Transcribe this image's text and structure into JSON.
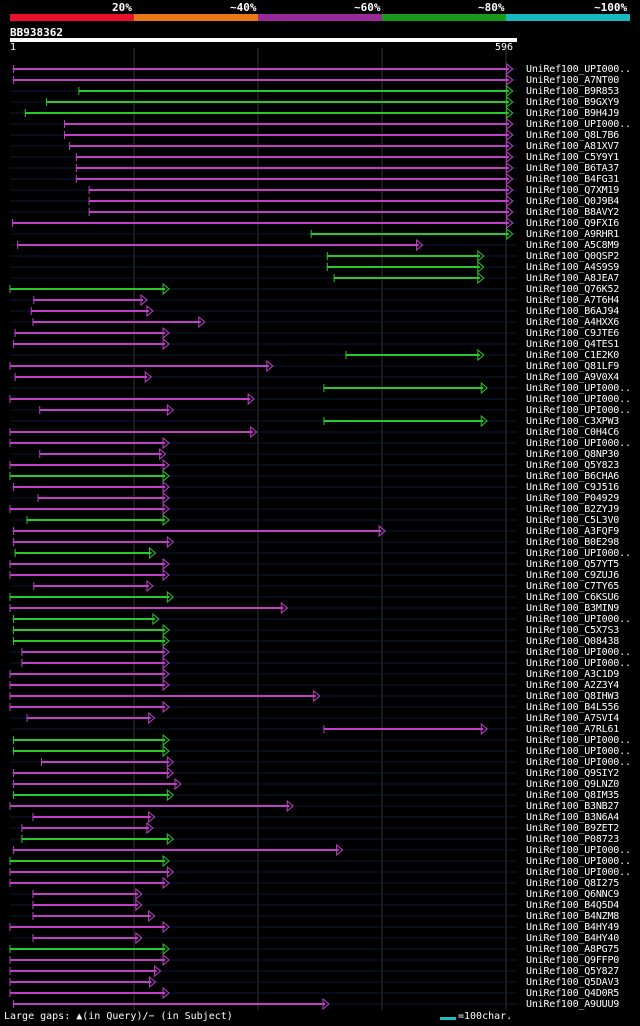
{
  "legend": {
    "labels": [
      "20%",
      "~40%",
      "~60%",
      "~80%",
      "~100%"
    ],
    "colors": [
      "#e8102a",
      "#e87818",
      "#9a2a9a",
      "#1a9a1a",
      "#18b8c0"
    ]
  },
  "query": {
    "id": "BB938362",
    "start": "1",
    "end": "596",
    "length": 596
  },
  "footer": {
    "gaps_text": "Large gaps: ▲(in Query)/− (in Subject)",
    "scale_text": "=100char."
  },
  "hit_colors": {
    "magenta": "#c040c8",
    "green": "#28c828"
  },
  "hits": [
    {
      "label": "UniRef100_UPI000..",
      "start": 4,
      "end": 591,
      "color": "magenta"
    },
    {
      "label": "UniRef100_A7NT00",
      "start": 4,
      "end": 591,
      "color": "magenta"
    },
    {
      "label": "UniRef100_B9R853",
      "start": 81,
      "end": 591,
      "color": "green"
    },
    {
      "label": "UniRef100_B9GXY9",
      "start": 43,
      "end": 591,
      "color": "green"
    },
    {
      "label": "UniRef100_B9H4J9",
      "start": 18,
      "end": 591,
      "color": "green"
    },
    {
      "label": "UniRef100_UPI000..",
      "start": 64,
      "end": 591,
      "color": "magenta"
    },
    {
      "label": "UniRef100_Q8L7B6",
      "start": 64,
      "end": 591,
      "color": "magenta"
    },
    {
      "label": "UniRef100_A81XV7",
      "start": 70,
      "end": 591,
      "color": "magenta"
    },
    {
      "label": "UniRef100_C5Y9Y1",
      "start": 78,
      "end": 591,
      "color": "magenta"
    },
    {
      "label": "UniRef100_B6TA37",
      "start": 78,
      "end": 591,
      "color": "magenta"
    },
    {
      "label": "UniRef100_B4FG31",
      "start": 78,
      "end": 591,
      "color": "magenta"
    },
    {
      "label": "UniRef100_Q7XM19",
      "start": 93,
      "end": 591,
      "color": "magenta"
    },
    {
      "label": "UniRef100_Q0J9B4",
      "start": 93,
      "end": 591,
      "color": "magenta"
    },
    {
      "label": "UniRef100_B8AVY2",
      "start": 93,
      "end": 591,
      "color": "magenta"
    },
    {
      "label": "UniRef100_Q9FXI6",
      "start": 3,
      "end": 591,
      "color": "magenta"
    },
    {
      "label": "UniRef100_A9RHR1",
      "start": 354,
      "end": 591,
      "color": "green"
    },
    {
      "label": "UniRef100_A5C8M9",
      "start": 9,
      "end": 485,
      "color": "magenta"
    },
    {
      "label": "UniRef100_Q0QSP2",
      "start": 373,
      "end": 557,
      "color": "green"
    },
    {
      "label": "UniRef100_A4S9S9",
      "start": 373,
      "end": 557,
      "color": "green"
    },
    {
      "label": "UniRef100_A8JEA7",
      "start": 381,
      "end": 557,
      "color": "green"
    },
    {
      "label": "UniRef100_Q76K52",
      "start": 0,
      "end": 187,
      "color": "green"
    },
    {
      "label": "UniRef100_A7T6H4",
      "start": 28,
      "end": 161,
      "color": "magenta"
    },
    {
      "label": "UniRef100_B6AJ94",
      "start": 25,
      "end": 168,
      "color": "magenta"
    },
    {
      "label": "UniRef100_A4HXX6",
      "start": 27,
      "end": 229,
      "color": "magenta"
    },
    {
      "label": "UniRef100_C9JTE6",
      "start": 6,
      "end": 187,
      "color": "magenta"
    },
    {
      "label": "UniRef100_Q4TES1",
      "start": 4,
      "end": 187,
      "color": "magenta"
    },
    {
      "label": "UniRef100_C1E2K0",
      "start": 395,
      "end": 557,
      "color": "green"
    },
    {
      "label": "UniRef100_Q81LF9",
      "start": 0,
      "end": 309,
      "color": "magenta"
    },
    {
      "label": "UniRef100_A9V0X4",
      "start": 6,
      "end": 166,
      "color": "magenta"
    },
    {
      "label": "UniRef100_UPI000..",
      "start": 369,
      "end": 561,
      "color": "green"
    },
    {
      "label": "UniRef100_UPI000..",
      "start": 0,
      "end": 287,
      "color": "magenta"
    },
    {
      "label": "UniRef100_UPI000..",
      "start": 35,
      "end": 192,
      "color": "magenta"
    },
    {
      "label": "UniRef100_C3XPW3",
      "start": 369,
      "end": 561,
      "color": "green"
    },
    {
      "label": "UniRef100_C0H4C6",
      "start": 0,
      "end": 290,
      "color": "magenta"
    },
    {
      "label": "UniRef100_UPI000..",
      "start": 0,
      "end": 187,
      "color": "magenta"
    },
    {
      "label": "UniRef100_Q8NP30",
      "start": 35,
      "end": 183,
      "color": "magenta"
    },
    {
      "label": "UniRef100_Q5Y823",
      "start": 0,
      "end": 187,
      "color": "magenta"
    },
    {
      "label": "UniRef100_B6CHA6",
      "start": 0,
      "end": 187,
      "color": "green"
    },
    {
      "label": "UniRef100_C9J516",
      "start": 4,
      "end": 187,
      "color": "magenta"
    },
    {
      "label": "UniRef100_P04929",
      "start": 33,
      "end": 187,
      "color": "magenta"
    },
    {
      "label": "UniRef100_B2ZYJ9",
      "start": 0,
      "end": 187,
      "color": "magenta"
    },
    {
      "label": "UniRef100_C5L3V0",
      "start": 20,
      "end": 187,
      "color": "green"
    },
    {
      "label": "UniRef100_A3FQF9",
      "start": 4,
      "end": 441,
      "color": "magenta"
    },
    {
      "label": "UniRef100_B0E298",
      "start": 4,
      "end": 192,
      "color": "magenta"
    },
    {
      "label": "UniRef100_UPI000..",
      "start": 6,
      "end": 171,
      "color": "green"
    },
    {
      "label": "UniRef100_Q57YT5",
      "start": 0,
      "end": 187,
      "color": "magenta"
    },
    {
      "label": "UniRef100_C9ZUJ6",
      "start": 0,
      "end": 187,
      "color": "magenta"
    },
    {
      "label": "UniRef100_C7TY65",
      "start": 28,
      "end": 168,
      "color": "magenta"
    },
    {
      "label": "UniRef100_C6KSU6",
      "start": 0,
      "end": 192,
      "color": "green"
    },
    {
      "label": "UniRef100_B3MIN9",
      "start": 0,
      "end": 326,
      "color": "magenta"
    },
    {
      "label": "UniRef100_UPI000..",
      "start": 4,
      "end": 175,
      "color": "green"
    },
    {
      "label": "UniRef100_C5X7S3",
      "start": 4,
      "end": 187,
      "color": "green"
    },
    {
      "label": "UniRef100_Q08438",
      "start": 4,
      "end": 187,
      "color": "green"
    },
    {
      "label": "UniRef100_UPI000..",
      "start": 14,
      "end": 187,
      "color": "magenta"
    },
    {
      "label": "UniRef100_UPI000..",
      "start": 14,
      "end": 187,
      "color": "magenta"
    },
    {
      "label": "UniRef100_A3C1D9",
      "start": 0,
      "end": 187,
      "color": "magenta"
    },
    {
      "label": "UniRef100_A2Z3Y4",
      "start": 0,
      "end": 187,
      "color": "magenta"
    },
    {
      "label": "UniRef100_Q8IHW3",
      "start": 0,
      "end": 364,
      "color": "magenta"
    },
    {
      "label": "UniRef100_B4L556",
      "start": 0,
      "end": 187,
      "color": "magenta"
    },
    {
      "label": "UniRef100_A7SVI4",
      "start": 20,
      "end": 170,
      "color": "magenta"
    },
    {
      "label": "UniRef100_A7RL61",
      "start": 369,
      "end": 561,
      "color": "magenta"
    },
    {
      "label": "UniRef100_UPI000..",
      "start": 4,
      "end": 187,
      "color": "green"
    },
    {
      "label": "UniRef100_UPI000..",
      "start": 4,
      "end": 187,
      "color": "green"
    },
    {
      "label": "UniRef100_UPI000..",
      "start": 37,
      "end": 192,
      "color": "magenta"
    },
    {
      "label": "UniRef100_Q9SIY2",
      "start": 4,
      "end": 192,
      "color": "magenta"
    },
    {
      "label": "UniRef100_Q9LNZ0",
      "start": 4,
      "end": 201,
      "color": "magenta"
    },
    {
      "label": "UniRef100_Q8IM35",
      "start": 4,
      "end": 192,
      "color": "green"
    },
    {
      "label": "UniRef100_B3NB27",
      "start": 0,
      "end": 333,
      "color": "magenta"
    },
    {
      "label": "UniRef100_B3N6A4",
      "start": 27,
      "end": 170,
      "color": "magenta"
    },
    {
      "label": "UniRef100_B9ZET2",
      "start": 14,
      "end": 168,
      "color": "magenta"
    },
    {
      "label": "UniRef100_P08723",
      "start": 14,
      "end": 192,
      "color": "green"
    },
    {
      "label": "UniRef100_UPI000..",
      "start": 4,
      "end": 391,
      "color": "magenta"
    },
    {
      "label": "UniRef100_UPI000..",
      "start": 0,
      "end": 187,
      "color": "green"
    },
    {
      "label": "UniRef100_UPI000..",
      "start": 0,
      "end": 192,
      "color": "magenta"
    },
    {
      "label": "UniRef100_Q8I275",
      "start": 0,
      "end": 187,
      "color": "magenta"
    },
    {
      "label": "UniRef100_Q6NNC9",
      "start": 27,
      "end": 155,
      "color": "magenta"
    },
    {
      "label": "UniRef100_B4Q5D4",
      "start": 27,
      "end": 155,
      "color": "magenta"
    },
    {
      "label": "UniRef100_B4NZM8",
      "start": 27,
      "end": 170,
      "color": "magenta"
    },
    {
      "label": "UniRef100_B4HY49",
      "start": 0,
      "end": 187,
      "color": "magenta"
    },
    {
      "label": "UniRef100_B4HY40",
      "start": 27,
      "end": 155,
      "color": "magenta"
    },
    {
      "label": "UniRef100_A8PG75",
      "start": 0,
      "end": 187,
      "color": "green"
    },
    {
      "label": "UniRef100_Q9FFP0",
      "start": 0,
      "end": 187,
      "color": "magenta"
    },
    {
      "label": "UniRef100_Q5Y827",
      "start": 0,
      "end": 177,
      "color": "magenta"
    },
    {
      "label": "UniRef100_Q5DAV3",
      "start": 0,
      "end": 171,
      "color": "magenta"
    },
    {
      "label": "UniRef100_Q4D0R5",
      "start": 0,
      "end": 187,
      "color": "magenta"
    },
    {
      "label": "UniRef100_A9UUU9",
      "start": 4,
      "end": 375,
      "color": "magenta"
    }
  ]
}
